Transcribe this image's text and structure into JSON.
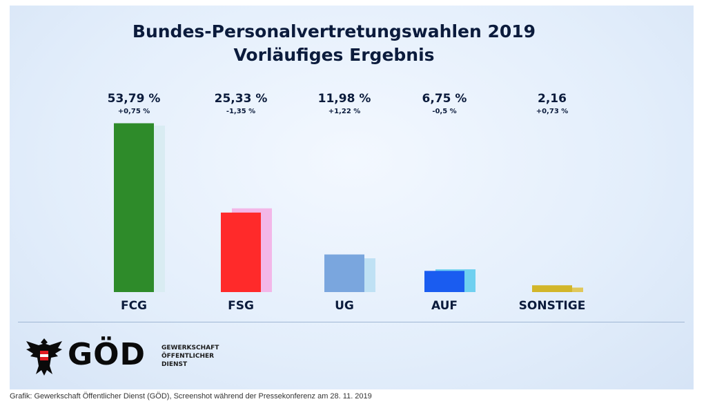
{
  "header": {
    "title": "Bundes-Personalvertretungswahlen 2019",
    "subtitle": "Vorläufiges Ergebnis"
  },
  "chart_data": {
    "type": "bar",
    "title": "Bundes-Personalvertretungswahlen 2019",
    "subtitle": "Vorläufiges Ergebnis",
    "categories": [
      "FCG",
      "FSG",
      "UG",
      "AUF",
      "SONSTIGE"
    ],
    "values": [
      53.79,
      25.33,
      11.98,
      6.75,
      2.16
    ],
    "value_labels": [
      "53,79 %",
      "25,33 %",
      "11,98 %",
      "6,75 %",
      "2,16"
    ],
    "changes": [
      0.75,
      -1.35,
      1.22,
      -0.5,
      0.73
    ],
    "change_labels": [
      "+0,75 %",
      "-1,35 %",
      "+1,22 %",
      "-0,5 %",
      "+0,73 %"
    ],
    "previous_values": [
      53.04,
      26.68,
      10.76,
      7.25,
      1.43
    ],
    "colors": [
      "#2e8b2a",
      "#ff2a2a",
      "#7aa6de",
      "#1a5cf0",
      "#d2b62a"
    ],
    "previous_colors": [
      "#d9ecf2",
      "#f3b7e8",
      "#bfe1f4",
      "#6fd0f0",
      "#e0c85a"
    ],
    "ylim": [
      0,
      55
    ],
    "xlabel": "",
    "ylabel": "",
    "grid": false,
    "legend": "none"
  },
  "logo": {
    "wordmark": "GÖD",
    "line1": "GEWERKSCHAFT",
    "line2": "ÖFFENTLICHER",
    "line3": "DIENST"
  },
  "caption": "Grafik: Gewerkschaft Öffentlicher Dienst (GÖD), Screenshot während der Pressekonferenz am 28. 11. 2019"
}
